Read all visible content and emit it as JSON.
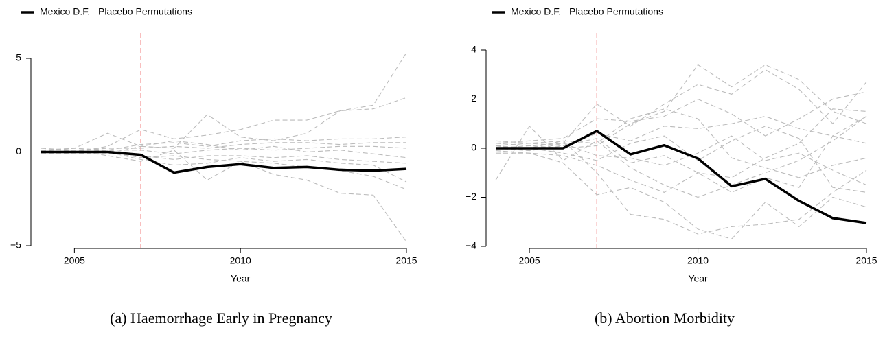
{
  "chart_data": [
    {
      "type": "line",
      "caption": "(a) Haemorrhage Early in Pregnancy",
      "xlabel": "Year",
      "x": [
        2004,
        2005,
        2006,
        2007,
        2008,
        2009,
        2010,
        2011,
        2012,
        2013,
        2014,
        2015
      ],
      "xlim": [
        2004,
        2015
      ],
      "xticks": [
        2005,
        2010,
        2015
      ],
      "ylim": [
        -5,
        5
      ],
      "yticks": [
        {
          "value": -5,
          "label": "−5"
        },
        0,
        5
      ],
      "vline": 2007,
      "vline_color": "#f08080",
      "series": [
        {
          "name": "Mexico D.F.",
          "color": "#000000",
          "values": [
            0,
            0,
            0,
            -0.15,
            -1.1,
            -0.8,
            -0.65,
            -0.85,
            -0.8,
            -0.95,
            -1.0,
            -0.9
          ]
        }
      ],
      "placebo": {
        "name": "Placebo Permutations",
        "color": "#bbbbbb",
        "lines": [
          [
            0.1,
            0.2,
            1.0,
            0.3,
            0.2,
            2.0,
            0.8,
            0.6,
            1.0,
            2.2,
            2.5,
            5.3
          ],
          [
            -0.1,
            0,
            0.3,
            1.2,
            0.7,
            0.9,
            1.2,
            1.7,
            1.7,
            2.2,
            2.3,
            2.9
          ],
          [
            0,
            0.1,
            -0.2,
            -0.5,
            0.1,
            -1.5,
            -0.5,
            -1.2,
            -1.5,
            -2.2,
            -2.3,
            -4.8
          ],
          [
            0.1,
            0,
            0.1,
            0.4,
            0.5,
            0.3,
            0.6,
            0.7,
            0.6,
            0.7,
            0.7,
            0.8
          ],
          [
            0,
            0.1,
            0,
            -0.3,
            -0.2,
            -0.4,
            -0.5,
            -0.6,
            -0.8,
            -1.0,
            -1.3,
            -2.0
          ],
          [
            0.2,
            0.1,
            0.2,
            0.2,
            0.3,
            0.2,
            0.4,
            0.5,
            0.5,
            0.4,
            0.5,
            0.5
          ],
          [
            -0.1,
            -0.1,
            0,
            -0.4,
            -0.7,
            -0.6,
            -0.3,
            -0.5,
            -0.4,
            -0.6,
            -0.7,
            -1.6
          ],
          [
            0,
            0,
            0.1,
            0.1,
            -0.1,
            0.1,
            0.2,
            0.1,
            0.2,
            0.3,
            0.3,
            0.2
          ],
          [
            0.1,
            0.2,
            0.1,
            -0.2,
            -0.4,
            -0.2,
            -0.2,
            -0.3,
            -0.2,
            -0.4,
            -0.5,
            -0.6
          ],
          [
            0,
            -0.1,
            -0.1,
            0.3,
            0.6,
            0.4,
            0.1,
            0.3,
            0.0,
            0.1,
            -0.1,
            -0.3
          ]
        ]
      }
    },
    {
      "type": "line",
      "caption": "(b) Abortion Morbidity",
      "xlabel": "Year",
      "x": [
        2004,
        2005,
        2006,
        2007,
        2008,
        2009,
        2010,
        2011,
        2012,
        2013,
        2014,
        2015
      ],
      "xlim": [
        2004,
        2015
      ],
      "xticks": [
        2005,
        2010,
        2015
      ],
      "ylim": [
        -4,
        4
      ],
      "yticks": [
        {
          "value": -4,
          "label": "−4"
        },
        {
          "value": -2,
          "label": "−2"
        },
        0,
        2,
        4
      ],
      "vline": 2007,
      "vline_color": "#f08080",
      "series": [
        {
          "name": "Mexico D.F.",
          "color": "#000000",
          "values": [
            0,
            0,
            0,
            0.7,
            -0.25,
            0.12,
            -0.42,
            -1.55,
            -1.25,
            -2.15,
            -2.85,
            -3.05
          ]
        }
      ],
      "placebo": {
        "name": "Placebo Permutations",
        "color": "#bbbbbb",
        "lines": [
          [
            -1.3,
            0.9,
            -0.5,
            0.3,
            -0.8,
            -1.5,
            -2.0,
            -1.5,
            -1.0,
            -0.5,
            0.3,
            1.3
          ],
          [
            0.2,
            0.1,
            0,
            0.1,
            1.0,
            1.5,
            3.4,
            2.5,
            3.4,
            2.8,
            1.5,
            1.0
          ],
          [
            0.1,
            0.2,
            0.3,
            -1.0,
            -2.7,
            -2.9,
            -3.5,
            -3.2,
            -3.1,
            -2.9,
            -1.8,
            -0.9
          ],
          [
            0,
            -0.1,
            0.2,
            1.8,
            0.9,
            1.8,
            2.6,
            2.2,
            3.2,
            2.4,
            1.0,
            2.7
          ],
          [
            0.3,
            0.2,
            0.1,
            0.4,
            -0.6,
            -0.3,
            -1.0,
            -1.8,
            -1.2,
            -1.6,
            0.5,
            1.3
          ],
          [
            0,
            0,
            -0.2,
            -0.5,
            0.2,
            0.5,
            -0.5,
            0.3,
            0.9,
            0.4,
            -1.6,
            -1.8
          ],
          [
            -0.1,
            -0.2,
            -0.6,
            -1.9,
            -1.6,
            -2.2,
            -3.3,
            -3.7,
            -2.2,
            -3.2,
            -2.0,
            -2.4
          ],
          [
            0.2,
            0.3,
            0.4,
            1.2,
            1.1,
            1.3,
            2.0,
            1.4,
            0.5,
            1.2,
            2.0,
            2.3
          ],
          [
            0,
            0.1,
            0.2,
            -0.3,
            -0.4,
            -0.7,
            -0.2,
            0.5,
            -0.5,
            -0.2,
            -0.9,
            -1.5
          ],
          [
            0.1,
            -0.1,
            0.1,
            0.6,
            0.3,
            0.9,
            0.8,
            1.0,
            1.3,
            0.8,
            0.5,
            0.2
          ],
          [
            -0.2,
            -0.2,
            -0.3,
            -0.7,
            -1.3,
            -1.8,
            -1.0,
            -1.2,
            -0.4,
            0.2,
            1.6,
            1.5
          ],
          [
            0.1,
            0,
            0.3,
            0.2,
            1.2,
            1.6,
            1.2,
            -0.4,
            -0.8,
            -1.2,
            -0.7,
            -0.4
          ]
        ]
      }
    }
  ]
}
